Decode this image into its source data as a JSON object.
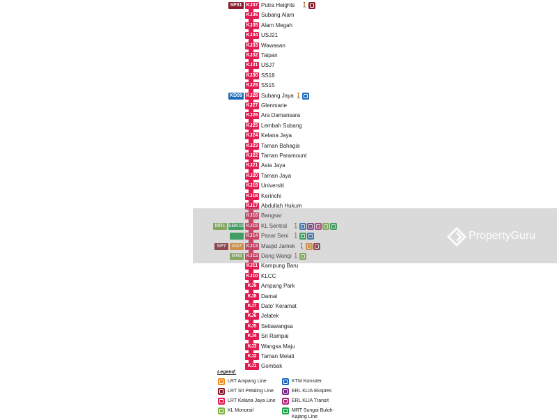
{
  "colors": {
    "kelana_jaya": "#e11b4f",
    "sri_petaling": "#8a1c2b",
    "ampang": "#f08a1c",
    "ktm": "#1c6ab8",
    "ekspres": "#7b2a8c",
    "transit": "#b2287c",
    "monorail": "#7cb342",
    "mrt": "#18a34a"
  },
  "stations": [
    {
      "code": "KJ37",
      "name": "Putra Heights",
      "badges": [
        {
          "text": "SP31",
          "color": "#8a1c2b"
        }
      ],
      "icons": [
        "walk-icon",
        "lrt-sri-petaling-icon"
      ]
    },
    {
      "code": "KJ36",
      "name": "Subang Alam",
      "badges": [],
      "icons": []
    },
    {
      "code": "KJ35",
      "name": "Alam Megah",
      "badges": [],
      "icons": []
    },
    {
      "code": "KJ34",
      "name": "USJ21",
      "badges": [],
      "icons": []
    },
    {
      "code": "KJ33",
      "name": "Wawasan",
      "badges": [],
      "icons": []
    },
    {
      "code": "KJ32",
      "name": "Taipan",
      "badges": [],
      "icons": []
    },
    {
      "code": "KJ31",
      "name": "USJ7",
      "badges": [],
      "icons": []
    },
    {
      "code": "KJ30",
      "name": "SS18",
      "badges": [],
      "icons": []
    },
    {
      "code": "KJ29",
      "name": "SS15",
      "badges": [],
      "icons": []
    },
    {
      "code": "KJ28",
      "name": "Subang Jaya",
      "badges": [
        {
          "text": "KD09",
          "color": "#1c6ab8"
        }
      ],
      "icons": [
        "walk-icon",
        "ktm-komuter-icon"
      ]
    },
    {
      "code": "KJ27",
      "name": "Glenmarie",
      "badges": [],
      "icons": []
    },
    {
      "code": "KJ26",
      "name": "Ara Damansara",
      "badges": [],
      "icons": []
    },
    {
      "code": "KJ25",
      "name": "Lembah Subang",
      "badges": [],
      "icons": []
    },
    {
      "code": "KJ24",
      "name": "Kelana Jaya",
      "badges": [],
      "icons": []
    },
    {
      "code": "KJ23",
      "name": "Taman Bahagia",
      "badges": [],
      "icons": []
    },
    {
      "code": "KJ22",
      "name": "Taman Paramount",
      "badges": [],
      "icons": []
    },
    {
      "code": "KJ21",
      "name": "Asia Jaya",
      "badges": [],
      "icons": []
    },
    {
      "code": "KJ20",
      "name": "Taman Jaya",
      "badges": [],
      "icons": []
    },
    {
      "code": "KJ19",
      "name": "Universiti",
      "badges": [],
      "icons": []
    },
    {
      "code": "KJ18",
      "name": "Kerinchi",
      "badges": [],
      "icons": []
    },
    {
      "code": "KJ17",
      "name": "Abdullah Hukum",
      "badges": [],
      "icons": []
    },
    {
      "code": "KJ16",
      "name": "Bangsar",
      "badges": [],
      "icons": []
    },
    {
      "code": "KJ15",
      "name": "KL Sentral",
      "badges": [
        {
          "text": "MR1",
          "color": "#7cb342"
        },
        {
          "text": "SBK15",
          "color": "#18a34a"
        }
      ],
      "icons": [
        "walk-icon",
        "ktm-komuter-icon",
        "erl-klia-ekspres-icon",
        "erl-klia-transit-icon",
        "kl-monorail-icon",
        "mrt-icon"
      ]
    },
    {
      "code": "KJ14",
      "name": "Pasar Seni",
      "badges": [
        {
          "text": "",
          "color": "#18a34a"
        }
      ],
      "icons": [
        "walk-icon",
        "mrt-icon",
        "ktm-komuter-icon"
      ]
    },
    {
      "code": "KJ13",
      "name": "Masjid Jamek",
      "badges": [
        {
          "text": "SP7",
          "color": "#8a1c2b"
        },
        {
          "text": "AG7",
          "color": "#f08a1c"
        }
      ],
      "icons": [
        "walk-icon",
        "lrt-ampang-icon",
        "lrt-sri-petaling-icon"
      ]
    },
    {
      "code": "KJ12",
      "name": "Dang Wangi",
      "badges": [
        {
          "text": "MR8",
          "color": "#7cb342"
        }
      ],
      "icons": [
        "walk-icon",
        "kl-monorail-icon"
      ]
    },
    {
      "code": "KJ11",
      "name": "Kampung Baru",
      "badges": [],
      "icons": []
    },
    {
      "code": "KJ10",
      "name": "KLCC",
      "badges": [],
      "icons": []
    },
    {
      "code": "KJ9",
      "name": "Ampang Park",
      "badges": [],
      "icons": []
    },
    {
      "code": "KJ8",
      "name": "Damai",
      "badges": [],
      "icons": []
    },
    {
      "code": "KJ7",
      "name": "Dato' Keramat",
      "badges": [],
      "icons": []
    },
    {
      "code": "KJ6",
      "name": "Jelatek",
      "badges": [],
      "icons": []
    },
    {
      "code": "KJ5",
      "name": "Setiawangsa",
      "badges": [],
      "icons": []
    },
    {
      "code": "KJ4",
      "name": "Sri Rampai",
      "badges": [],
      "icons": []
    },
    {
      "code": "KJ3",
      "name": "Wangsa Maju",
      "badges": [],
      "icons": []
    },
    {
      "code": "KJ2",
      "name": "Taman Melati",
      "badges": [],
      "icons": []
    },
    {
      "code": "KJ1",
      "name": "Gombak",
      "badges": [],
      "icons": []
    }
  ],
  "legend": {
    "title": "Legend:",
    "items": [
      {
        "label": "LRT Ampang Line",
        "color": "#f08a1c",
        "icon": "lrt-ampang-icon"
      },
      {
        "label": "LRT Sri Petaling Line",
        "color": "#8a1c2b",
        "icon": "lrt-sri-petaling-icon"
      },
      {
        "label": "LRT Kelana Jaya Line",
        "color": "#e11b4f",
        "icon": "lrt-kelana-jaya-icon"
      },
      {
        "label": "KL Monorail",
        "color": "#7cb342",
        "icon": "kl-monorail-icon"
      },
      {
        "label": "KTM Komuter",
        "color": "#1c6ab8",
        "icon": "ktm-komuter-icon"
      },
      {
        "label": "ERL KLIA Ekspres",
        "color": "#7b2a8c",
        "icon": "erl-klia-ekspres-icon"
      },
      {
        "label": "ERL KLIA Transit",
        "color": "#b2287c",
        "icon": "erl-klia-transit-icon"
      },
      {
        "label": "MRT Sungai Buloh-Kajang Line",
        "color": "#18a34a",
        "icon": "mrt-icon"
      }
    ]
  },
  "watermark": {
    "text": "PropertyGuru",
    "icon": "propertyguru-logo-icon"
  }
}
